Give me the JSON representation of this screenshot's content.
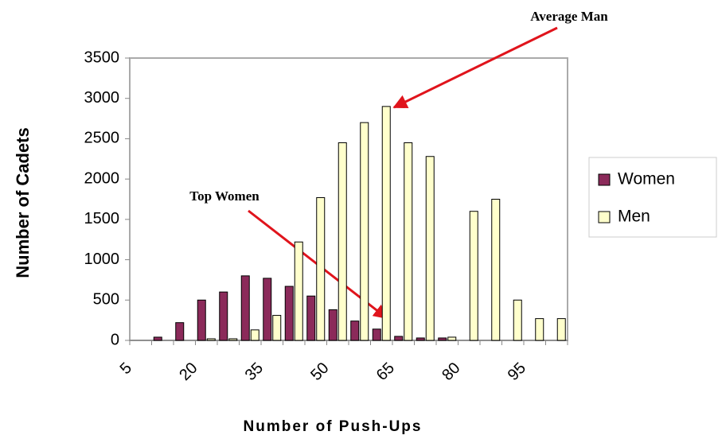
{
  "chart_data": {
    "type": "bar",
    "y_label": "Number of Cadets",
    "x_label": "Number of Push-Ups",
    "categories": [
      "5",
      null,
      null,
      "20",
      null,
      null,
      "35",
      null,
      null,
      "50",
      null,
      null,
      "65",
      null,
      null,
      "80",
      null,
      null,
      "95",
      null
    ],
    "series": [
      {
        "name": "Women",
        "color": "#8b2a5a",
        "values": [
          0,
          40,
          220,
          500,
          600,
          800,
          770,
          670,
          550,
          380,
          240,
          140,
          50,
          30,
          30,
          0,
          0,
          0,
          0,
          0
        ]
      },
      {
        "name": "Men",
        "color": "#ffffcc",
        "values": [
          0,
          0,
          0,
          20,
          20,
          130,
          310,
          1220,
          1770,
          2450,
          2700,
          2900,
          2450,
          2280,
          40,
          1600,
          1750,
          500,
          270,
          270
        ]
      }
    ],
    "ylim": [
      0,
      3500
    ],
    "yticks": [
      0,
      500,
      1000,
      1500,
      2000,
      2500,
      3000,
      3500
    ],
    "annotations": [
      "Average Man",
      "Top Women"
    ]
  }
}
